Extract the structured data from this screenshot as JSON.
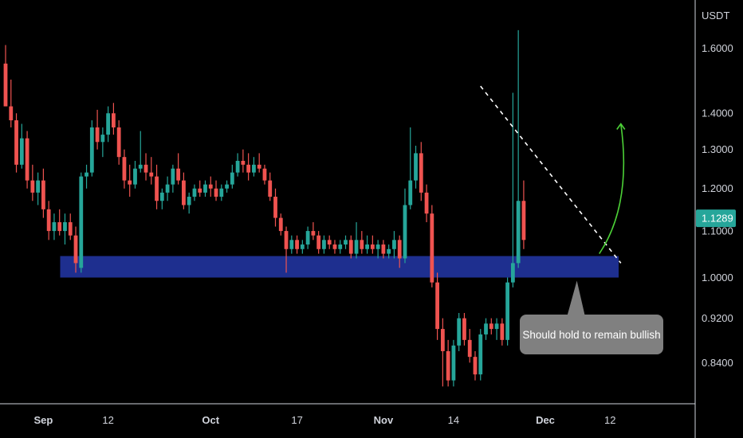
{
  "chart_data": {
    "type": "candlestick",
    "currency": "USDT",
    "y_axis": {
      "scale": "log",
      "range": [
        0.8,
        1.7
      ],
      "ticks": [
        {
          "value": 1.6,
          "label": "1.6000"
        },
        {
          "value": 1.4,
          "label": "1.4000"
        },
        {
          "value": 1.3,
          "label": "1.3000"
        },
        {
          "value": 1.2,
          "label": "1.2000"
        },
        {
          "value": 1.1,
          "label": "1.1000"
        },
        {
          "value": 1.0,
          "label": "1.0000"
        },
        {
          "value": 0.92,
          "label": "0.9200"
        },
        {
          "value": 0.84,
          "label": "0.8400"
        }
      ]
    },
    "x_axis": {
      "ticks": [
        {
          "label": "Sep",
          "bold": true,
          "bar": 7
        },
        {
          "label": "12",
          "bold": false,
          "bar": 19
        },
        {
          "label": "Oct",
          "bold": true,
          "bar": 38
        },
        {
          "label": "17",
          "bold": false,
          "bar": 54
        },
        {
          "label": "Nov",
          "bold": true,
          "bar": 70
        },
        {
          "label": "14",
          "bold": false,
          "bar": 83
        },
        {
          "label": "Dec",
          "bold": true,
          "bar": 100
        },
        {
          "label": "12",
          "bold": false,
          "bar": 112
        }
      ]
    },
    "last_price": {
      "value": 1.1289,
      "label": "1.1289",
      "color": "#26a69a"
    },
    "colors": {
      "up": "#26a69a",
      "down": "#ef5350",
      "zone": "#1e2f8f",
      "background": "#000000"
    },
    "support_zone": {
      "top": 1.045,
      "bottom": 1.0,
      "bar_start": 11,
      "bar_end": 113
    },
    "trendline": {
      "start": {
        "bar": 88,
        "price": 1.48
      },
      "end": {
        "bar": 114,
        "price": 1.03
      }
    },
    "projection_arrow": {
      "from": {
        "bar": 110,
        "price": 1.05
      },
      "to": {
        "bar": 114,
        "price": 1.37
      },
      "color": "#4cd137"
    },
    "annotation": {
      "text": "Should hold to remain bullish",
      "anchor": {
        "bar": 106,
        "price": 1.0
      }
    },
    "candles": [
      [
        1.55,
        1.61,
        1.42,
        1.42
      ],
      [
        1.42,
        1.5,
        1.36,
        1.38
      ],
      [
        1.38,
        1.4,
        1.24,
        1.26
      ],
      [
        1.26,
        1.37,
        1.25,
        1.33
      ],
      [
        1.33,
        1.35,
        1.2,
        1.22
      ],
      [
        1.22,
        1.26,
        1.17,
        1.19
      ],
      [
        1.19,
        1.24,
        1.16,
        1.22
      ],
      [
        1.22,
        1.25,
        1.13,
        1.15
      ],
      [
        1.15,
        1.17,
        1.08,
        1.1
      ],
      [
        1.1,
        1.14,
        1.08,
        1.12
      ],
      [
        1.12,
        1.15,
        1.09,
        1.1
      ],
      [
        1.1,
        1.14,
        1.07,
        1.12
      ],
      [
        1.12,
        1.14,
        1.08,
        1.09
      ],
      [
        1.09,
        1.11,
        1.01,
        1.03
      ],
      [
        1.02,
        1.24,
        1.01,
        1.23
      ],
      [
        1.23,
        1.26,
        1.2,
        1.24
      ],
      [
        1.24,
        1.38,
        1.23,
        1.36
      ],
      [
        1.36,
        1.41,
        1.3,
        1.32
      ],
      [
        1.32,
        1.36,
        1.28,
        1.34
      ],
      [
        1.34,
        1.42,
        1.32,
        1.4
      ],
      [
        1.4,
        1.43,
        1.34,
        1.36
      ],
      [
        1.36,
        1.38,
        1.26,
        1.28
      ],
      [
        1.28,
        1.3,
        1.2,
        1.22
      ],
      [
        1.22,
        1.26,
        1.18,
        1.21
      ],
      [
        1.21,
        1.27,
        1.2,
        1.25
      ],
      [
        1.25,
        1.35,
        1.24,
        1.26
      ],
      [
        1.26,
        1.29,
        1.22,
        1.24
      ],
      [
        1.24,
        1.28,
        1.21,
        1.23
      ],
      [
        1.23,
        1.26,
        1.15,
        1.17
      ],
      [
        1.17,
        1.2,
        1.15,
        1.19
      ],
      [
        1.19,
        1.23,
        1.17,
        1.21
      ],
      [
        1.21,
        1.26,
        1.19,
        1.25
      ],
      [
        1.25,
        1.29,
        1.21,
        1.22
      ],
      [
        1.22,
        1.24,
        1.15,
        1.16
      ],
      [
        1.16,
        1.19,
        1.14,
        1.18
      ],
      [
        1.18,
        1.21,
        1.17,
        1.2
      ],
      [
        1.2,
        1.22,
        1.18,
        1.19
      ],
      [
        1.19,
        1.22,
        1.18,
        1.21
      ],
      [
        1.21,
        1.23,
        1.18,
        1.2
      ],
      [
        1.2,
        1.22,
        1.17,
        1.18
      ],
      [
        1.18,
        1.21,
        1.17,
        1.2
      ],
      [
        1.2,
        1.22,
        1.19,
        1.21
      ],
      [
        1.21,
        1.26,
        1.2,
        1.24
      ],
      [
        1.24,
        1.29,
        1.23,
        1.27
      ],
      [
        1.27,
        1.3,
        1.24,
        1.26
      ],
      [
        1.26,
        1.29,
        1.22,
        1.24
      ],
      [
        1.24,
        1.28,
        1.23,
        1.26
      ],
      [
        1.26,
        1.29,
        1.24,
        1.25
      ],
      [
        1.25,
        1.26,
        1.21,
        1.22
      ],
      [
        1.22,
        1.24,
        1.17,
        1.18
      ],
      [
        1.18,
        1.2,
        1.11,
        1.13
      ],
      [
        1.13,
        1.14,
        1.09,
        1.1
      ],
      [
        1.1,
        1.11,
        1.01,
        1.06
      ],
      [
        1.06,
        1.09,
        1.05,
        1.08
      ],
      [
        1.08,
        1.09,
        1.05,
        1.06
      ],
      [
        1.06,
        1.08,
        1.05,
        1.07
      ],
      [
        1.07,
        1.11,
        1.06,
        1.1
      ],
      [
        1.1,
        1.12,
        1.08,
        1.09
      ],
      [
        1.09,
        1.1,
        1.05,
        1.06
      ],
      [
        1.06,
        1.09,
        1.05,
        1.08
      ],
      [
        1.08,
        1.09,
        1.06,
        1.07
      ],
      [
        1.07,
        1.08,
        1.05,
        1.06
      ],
      [
        1.06,
        1.08,
        1.05,
        1.07
      ],
      [
        1.07,
        1.09,
        1.06,
        1.08
      ],
      [
        1.08,
        1.09,
        1.04,
        1.05
      ],
      [
        1.05,
        1.12,
        1.04,
        1.08
      ],
      [
        1.08,
        1.1,
        1.05,
        1.06
      ],
      [
        1.06,
        1.09,
        1.05,
        1.07
      ],
      [
        1.07,
        1.09,
        1.05,
        1.06
      ],
      [
        1.06,
        1.08,
        1.04,
        1.07
      ],
      [
        1.07,
        1.08,
        1.04,
        1.05
      ],
      [
        1.05,
        1.07,
        1.04,
        1.06
      ],
      [
        1.06,
        1.1,
        1.04,
        1.08
      ],
      [
        1.08,
        1.09,
        1.02,
        1.04
      ],
      [
        1.04,
        1.2,
        1.03,
        1.16
      ],
      [
        1.16,
        1.36,
        1.15,
        1.22
      ],
      [
        1.22,
        1.31,
        1.2,
        1.29
      ],
      [
        1.29,
        1.32,
        1.17,
        1.19
      ],
      [
        1.19,
        1.21,
        1.12,
        1.14
      ],
      [
        1.14,
        1.16,
        0.98,
        0.99
      ],
      [
        0.99,
        1.01,
        0.88,
        0.9
      ],
      [
        0.9,
        0.92,
        0.8,
        0.86
      ],
      [
        0.86,
        0.88,
        0.8,
        0.81
      ],
      [
        0.81,
        0.88,
        0.8,
        0.87
      ],
      [
        0.87,
        0.93,
        0.86,
        0.92
      ],
      [
        0.92,
        0.93,
        0.87,
        0.88
      ],
      [
        0.88,
        0.9,
        0.84,
        0.85
      ],
      [
        0.85,
        0.86,
        0.81,
        0.82
      ],
      [
        0.82,
        0.9,
        0.81,
        0.89
      ],
      [
        0.89,
        0.92,
        0.88,
        0.91
      ],
      [
        0.91,
        0.92,
        0.89,
        0.9
      ],
      [
        0.9,
        0.92,
        0.88,
        0.91
      ],
      [
        0.91,
        0.92,
        0.87,
        0.88
      ],
      [
        0.88,
        1.0,
        0.87,
        0.99
      ],
      [
        0.99,
        1.46,
        0.98,
        1.03
      ],
      [
        1.03,
        1.66,
        1.02,
        1.17
      ],
      [
        1.17,
        1.22,
        1.06,
        1.08
      ]
    ]
  }
}
